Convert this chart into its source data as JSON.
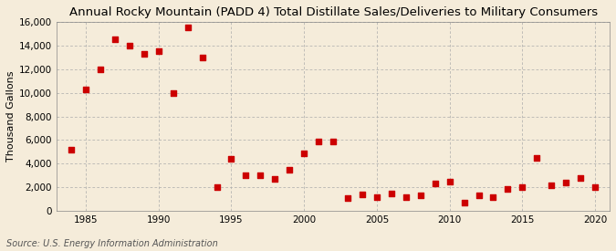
{
  "title": "Annual Rocky Mountain (PADD 4) Total Distillate Sales/Deliveries to Military Consumers",
  "ylabel": "Thousand Gallons",
  "source": "Source: U.S. Energy Information Administration",
  "background_color": "#f5ecda",
  "plot_bg_color": "#f5ecda",
  "marker_color": "#cc0000",
  "years": [
    1984,
    1985,
    1986,
    1987,
    1988,
    1989,
    1990,
    1991,
    1992,
    1993,
    1994,
    1995,
    1996,
    1997,
    1998,
    1999,
    2000,
    2001,
    2002,
    2003,
    2004,
    2005,
    2006,
    2007,
    2008,
    2009,
    2010,
    2011,
    2012,
    2013,
    2014,
    2015,
    2016,
    2017,
    2018,
    2019,
    2020
  ],
  "values": [
    5200,
    10300,
    12000,
    14500,
    14000,
    13300,
    13500,
    10000,
    15500,
    13000,
    2000,
    4400,
    3000,
    3000,
    2700,
    3500,
    4900,
    5900,
    5900,
    1100,
    1400,
    1200,
    1500,
    1200,
    1300,
    2300,
    2500,
    700,
    1300,
    1200,
    1900,
    2000,
    4500,
    2200,
    2400,
    2800,
    2000
  ],
  "xlim": [
    1983,
    2021
  ],
  "ylim": [
    0,
    16000
  ],
  "yticks": [
    0,
    2000,
    4000,
    6000,
    8000,
    10000,
    12000,
    14000,
    16000
  ],
  "ytick_labels": [
    "0",
    "2,000",
    "4,000",
    "6,000",
    "8,000",
    "10,000",
    "12,000",
    "14,000",
    "16,000"
  ],
  "xticks": [
    1985,
    1990,
    1995,
    2000,
    2005,
    2010,
    2015,
    2020
  ],
  "title_fontsize": 9.5,
  "tick_fontsize": 7.5,
  "ylabel_fontsize": 8,
  "source_fontsize": 7
}
